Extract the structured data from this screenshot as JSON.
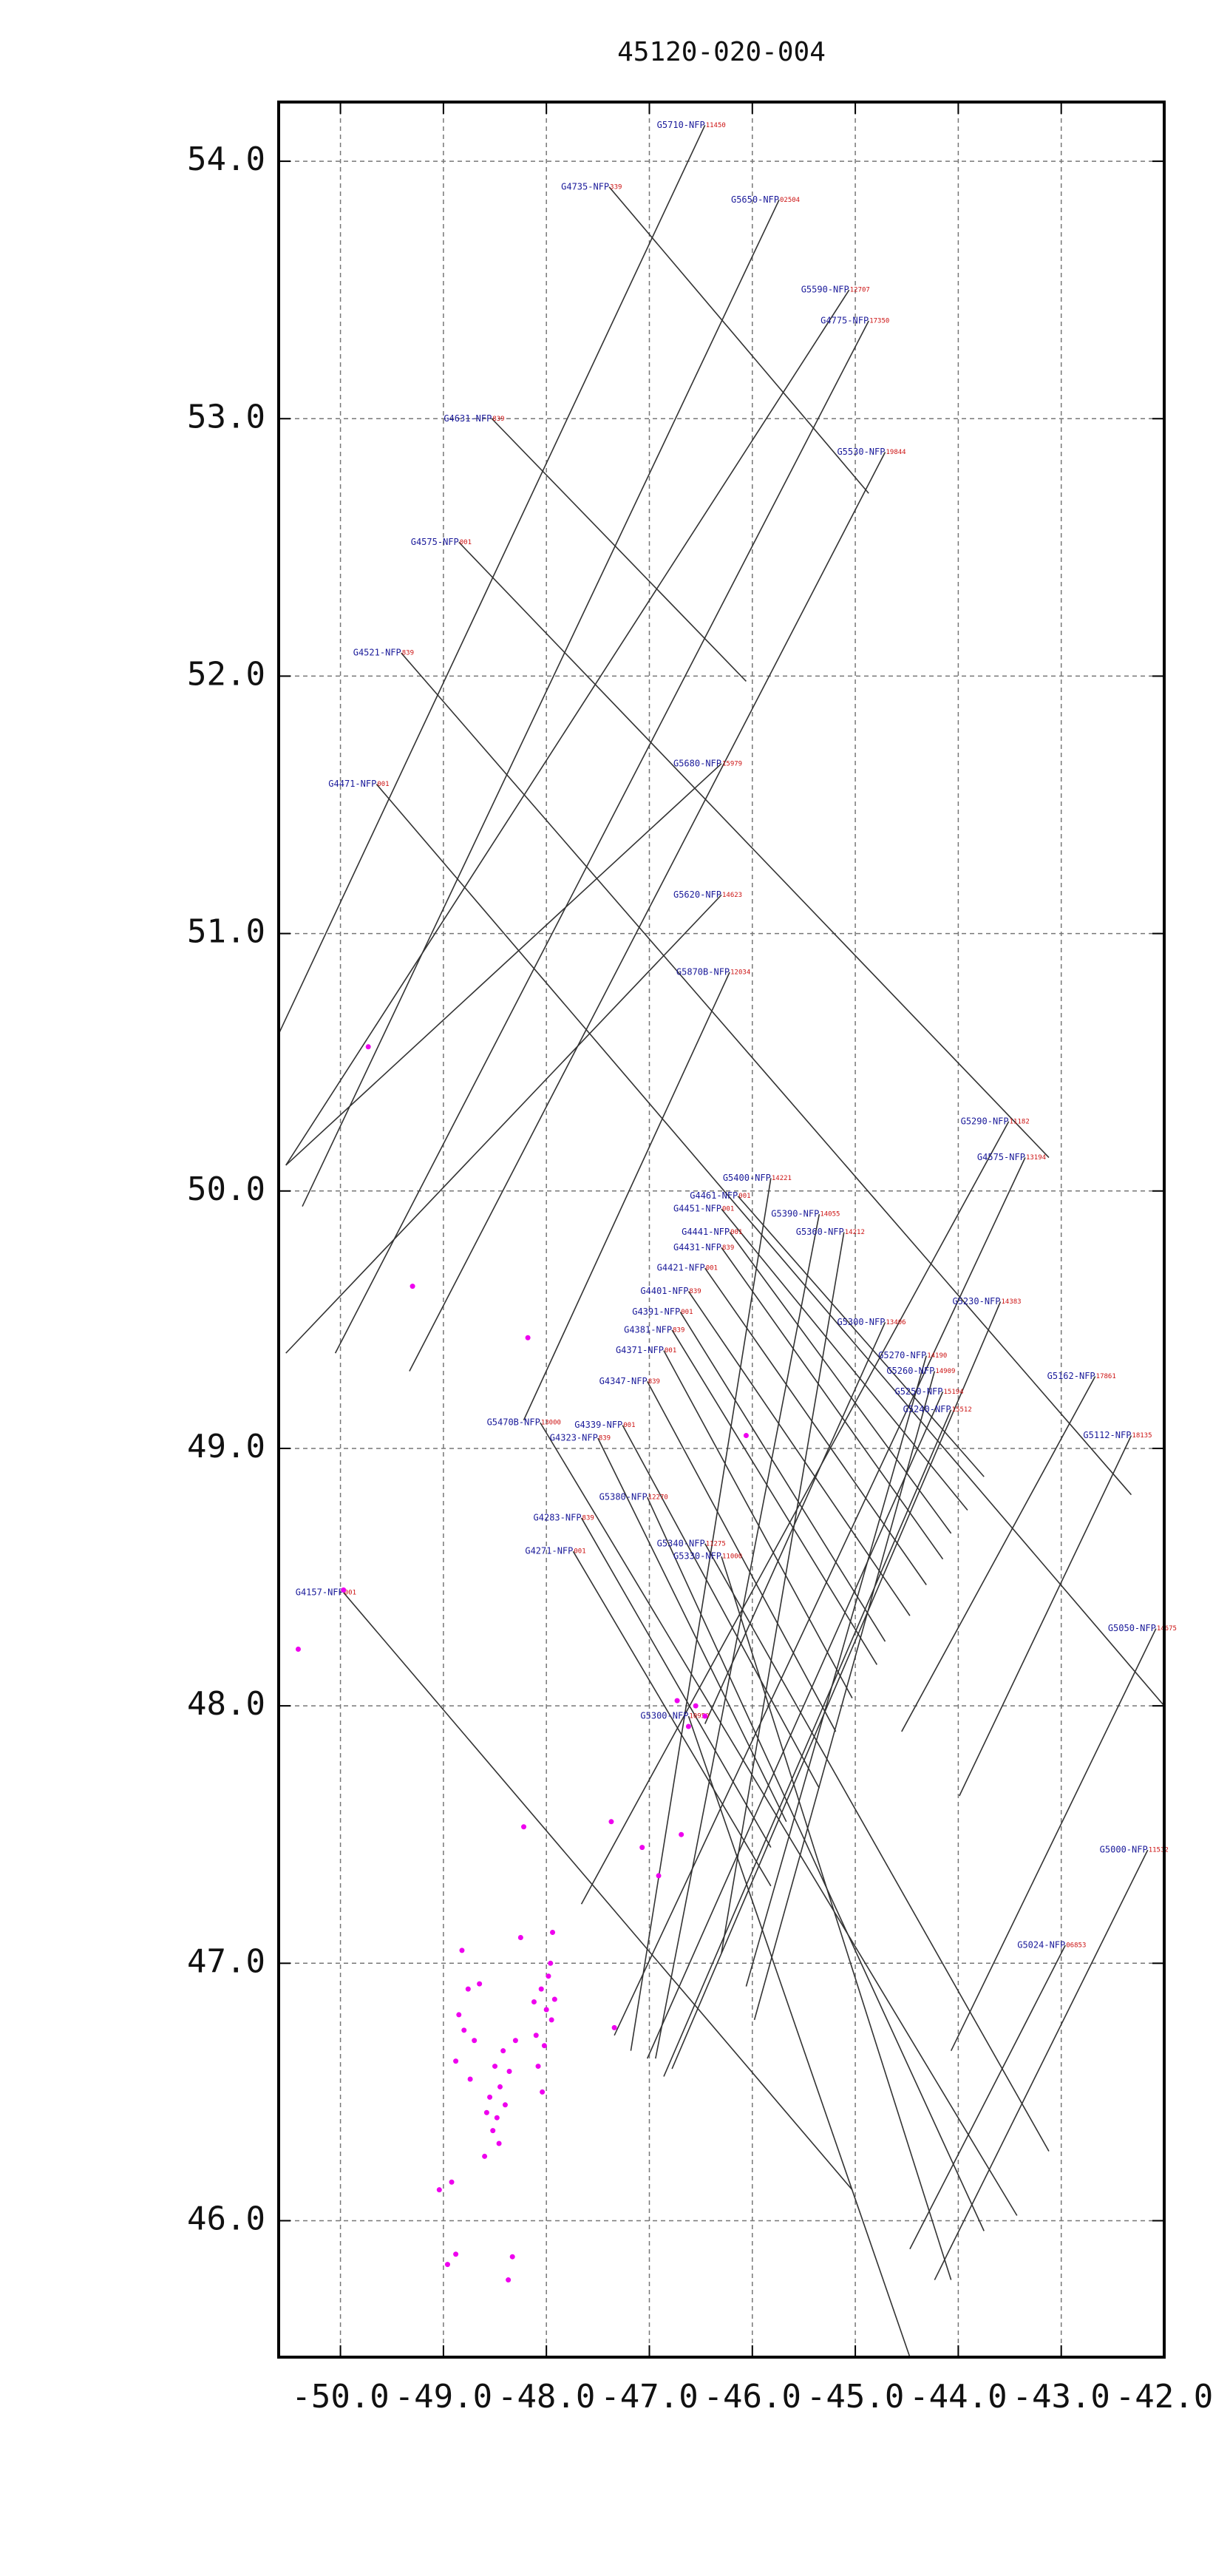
{
  "chart_data": {
    "type": "tracks",
    "title": "45120-020-004",
    "xlim": [
      -50.6,
      -42.0
    ],
    "ylim": [
      45.47,
      54.23
    ],
    "xticks": [
      {
        "value": -50,
        "label": "-50.0"
      },
      {
        "value": -49,
        "label": "-49.0"
      },
      {
        "value": -48,
        "label": "-48.0"
      },
      {
        "value": -47,
        "label": "-47.0"
      },
      {
        "value": -46,
        "label": "-46.0"
      },
      {
        "value": -45,
        "label": "-45.0"
      },
      {
        "value": -44,
        "label": "-44.0"
      },
      {
        "value": -43,
        "label": "-43.0"
      },
      {
        "value": -42,
        "label": "-42.0"
      }
    ],
    "yticks": [
      {
        "value": 46,
        "label": "46.0"
      },
      {
        "value": 47,
        "label": "47.0"
      },
      {
        "value": 48,
        "label": "48.0"
      },
      {
        "value": 49,
        "label": "49.0"
      },
      {
        "value": 50,
        "label": "50.0"
      },
      {
        "value": 51,
        "label": "51.0"
      },
      {
        "value": 52,
        "label": "52.0"
      },
      {
        "value": 53,
        "label": "53.0"
      },
      {
        "value": 54,
        "label": "54.0"
      }
    ],
    "grid": true,
    "line_color": "#333333",
    "name_color": "#1a1a9a",
    "id_color": "#cc1111",
    "point_color": "#ee00ee",
    "tracks": [
      {
        "name": "G5710-NFP",
        "id": "11450",
        "lon": [
          -46.46,
          -50.6
        ],
        "lat": [
          54.14,
          50.61
        ]
      },
      {
        "name": "G4735-NFP",
        "id": "339",
        "lon": [
          -47.39,
          -44.87
        ],
        "lat": [
          53.9,
          52.71
        ]
      },
      {
        "name": "G5650-NFP",
        "id": "02504",
        "lon": [
          -45.74,
          -50.37
        ],
        "lat": [
          53.85,
          49.94
        ]
      },
      {
        "name": "G5590-NFP",
        "id": "12707",
        "lon": [
          -45.06,
          -50.53
        ],
        "lat": [
          53.5,
          50.1
        ]
      },
      {
        "name": "G4775-NFP",
        "id": "17350",
        "lon": [
          -44.87,
          -50.05
        ],
        "lat": [
          53.38,
          49.37
        ]
      },
      {
        "name": "G5530-NFP",
        "id": "19844",
        "lon": [
          -44.71,
          -49.33
        ],
        "lat": [
          52.87,
          49.3
        ]
      },
      {
        "name": "G4631-NFP",
        "id": "839",
        "lon": [
          -48.53,
          -46.06
        ],
        "lat": [
          53.0,
          51.98
        ]
      },
      {
        "name": "G4575-NFP",
        "id": "001",
        "lon": [
          -48.85,
          -43.12
        ],
        "lat": [
          52.52,
          50.13
        ]
      },
      {
        "name": "G4521-NFP",
        "id": "839",
        "lon": [
          -49.41,
          -42.32
        ],
        "lat": [
          52.09,
          48.82
        ]
      },
      {
        "name": "G4471-NFP",
        "id": "001",
        "lon": [
          -49.65,
          -42.0
        ],
        "lat": [
          51.58,
          48.0
        ]
      },
      {
        "name": "G5680-NFP",
        "id": "15979",
        "lon": [
          -46.3,
          -50.53
        ],
        "lat": [
          51.66,
          50.1
        ]
      },
      {
        "name": "G5620-NFP",
        "id": "14623",
        "lon": [
          -46.3,
          -50.53
        ],
        "lat": [
          51.15,
          49.37
        ]
      },
      {
        "name": "G5870B-NFP",
        "id": "12034",
        "lon": [
          -46.22,
          -48.22
        ],
        "lat": [
          50.85,
          49.11
        ]
      },
      {
        "name": "G4157-NFP",
        "id": "001",
        "lon": [
          -49.97,
          -45.03
        ],
        "lat": [
          48.44,
          46.12
        ]
      },
      {
        "name": "G4461-NFP",
        "id": "001",
        "lon": [
          -46.14,
          -43.75
        ],
        "lat": [
          49.98,
          48.89
        ]
      },
      {
        "name": "G4451-NFP",
        "id": "001",
        "lon": [
          -46.3,
          -43.91
        ],
        "lat": [
          49.93,
          48.76
        ]
      },
      {
        "name": "G4441-NFP",
        "id": "001",
        "lon": [
          -46.22,
          -44.07
        ],
        "lat": [
          49.84,
          48.67
        ]
      },
      {
        "name": "G4431-NFP",
        "id": "839",
        "lon": [
          -46.3,
          -44.15
        ],
        "lat": [
          49.78,
          48.57
        ]
      },
      {
        "name": "G4421-NFP",
        "id": "001",
        "lon": [
          -46.46,
          -44.31
        ],
        "lat": [
          49.7,
          48.47
        ]
      },
      {
        "name": "G4401-NFP",
        "id": "839",
        "lon": [
          -46.62,
          -44.47
        ],
        "lat": [
          49.61,
          48.35
        ]
      },
      {
        "name": "G4391-NFP",
        "id": "001",
        "lon": [
          -46.7,
          -44.71
        ],
        "lat": [
          49.53,
          48.25
        ]
      },
      {
        "name": "G4381-NFP",
        "id": "839",
        "lon": [
          -46.78,
          -44.79
        ],
        "lat": [
          49.46,
          48.16
        ]
      },
      {
        "name": "G4371-NFP",
        "id": "001",
        "lon": [
          -46.86,
          -45.03
        ],
        "lat": [
          49.38,
          48.03
        ]
      },
      {
        "name": "G4347-NFP",
        "id": "839",
        "lon": [
          -47.02,
          -45.19
        ],
        "lat": [
          49.26,
          47.9
        ]
      },
      {
        "name": "G4339-NFP",
        "id": "001",
        "lon": [
          -47.26,
          -45.35
        ],
        "lat": [
          49.09,
          47.68
        ]
      },
      {
        "name": "G4323-NFP",
        "id": "839",
        "lon": [
          -47.5,
          -45.67
        ],
        "lat": [
          49.04,
          47.55
        ]
      },
      {
        "name": "G4283-NFP",
        "id": "839",
        "lon": [
          -47.66,
          -45.82
        ],
        "lat": [
          48.73,
          47.45
        ]
      },
      {
        "name": "G4271-NFP",
        "id": "001",
        "lon": [
          -47.74,
          -45.82
        ],
        "lat": [
          48.6,
          47.3
        ]
      },
      {
        "name": "G5470B-NFP",
        "id": "13000",
        "lon": [
          -48.06,
          -43.43
        ],
        "lat": [
          49.1,
          46.02
        ]
      },
      {
        "name": "G5380-NFP",
        "id": "12270",
        "lon": [
          -47.02,
          -43.75
        ],
        "lat": [
          48.81,
          45.96
        ]
      },
      {
        "name": "G5340-NFP",
        "id": "11275",
        "lon": [
          -46.46,
          -43.12
        ],
        "lat": [
          48.63,
          46.27
        ]
      },
      {
        "name": "G5330-NFP",
        "id": "11000",
        "lon": [
          -46.3,
          -44.07
        ],
        "lat": [
          48.58,
          45.77
        ]
      },
      {
        "name": "G5300-NFP",
        "id": "10950",
        "lon": [
          -46.62,
          -44.47
        ],
        "lat": [
          47.96,
          45.47
        ]
      },
      {
        "name": "G5290-NFP",
        "id": "11182",
        "lon": [
          -43.51,
          -47.66
        ],
        "lat": [
          50.27,
          47.23
        ]
      },
      {
        "name": "G4575-NFP",
        "id": "13194",
        "lon": [
          -43.35,
          -47.34
        ],
        "lat": [
          50.13,
          46.72
        ]
      },
      {
        "name": "G5230-NFP",
        "id": "14383",
        "lon": [
          -43.59,
          -46.78
        ],
        "lat": [
          49.57,
          46.59
        ]
      },
      {
        "name": "G5162-NFP",
        "id": "17861",
        "lon": [
          -42.67,
          -44.55
        ],
        "lat": [
          49.28,
          47.9
        ]
      },
      {
        "name": "G5112-NFP",
        "id": "18135",
        "lon": [
          -42.32,
          -43.99
        ],
        "lat": [
          49.05,
          47.65
        ]
      },
      {
        "name": "G5050-NFP",
        "id": "14675",
        "lon": [
          -42.08,
          -44.07
        ],
        "lat": [
          48.3,
          46.66
        ]
      },
      {
        "name": "G5000-NFP",
        "id": "11532",
        "lon": [
          -42.16,
          -44.23
        ],
        "lat": [
          47.44,
          45.77
        ]
      },
      {
        "name": "G5024-NFP",
        "id": "06853",
        "lon": [
          -42.96,
          -44.47
        ],
        "lat": [
          47.07,
          45.89
        ]
      },
      {
        "name": "G5400-NFP",
        "id": "14221",
        "lon": [
          -45.82,
          -47.18
        ],
        "lat": [
          50.05,
          46.66
        ]
      },
      {
        "name": "G5390-NFP",
        "id": "14055",
        "lon": [
          -45.35,
          -46.94
        ],
        "lat": [
          49.91,
          46.63
        ]
      },
      {
        "name": "G5360-NFP",
        "id": "14212",
        "lon": [
          -45.11,
          -46.3
        ],
        "lat": [
          49.84,
          47.04
        ]
      },
      {
        "name": "G5300-NFP",
        "id": "13406",
        "lon": [
          -44.71,
          -46.46
        ],
        "lat": [
          49.49,
          47.93
        ]
      },
      {
        "name": "G5270-NFP",
        "id": "14190",
        "lon": [
          -44.31,
          -46.06
        ],
        "lat": [
          49.36,
          46.91
        ]
      },
      {
        "name": "G5260-NFP",
        "id": "14909",
        "lon": [
          -44.23,
          -45.98
        ],
        "lat": [
          49.3,
          46.78
        ]
      },
      {
        "name": "G5250-NFP",
        "id": "15194",
        "lon": [
          -44.15,
          -47.02
        ],
        "lat": [
          49.22,
          46.63
        ]
      },
      {
        "name": "G5240-NFP",
        "id": "15512",
        "lon": [
          -44.07,
          -46.86
        ],
        "lat": [
          49.15,
          46.56
        ]
      }
    ],
    "points": {
      "lon": [
        -49.73,
        -49.3,
        -48.18,
        -49.97,
        -50.41,
        -46.06,
        -46.73,
        -46.46,
        -46.55,
        -46.62,
        -48.22,
        -47.37,
        -47.07,
        -46.69,
        -46.91,
        -47.94,
        -47.34,
        -48.92,
        -49.04,
        -48.88,
        -48.96,
        -48.33,
        -48.37,
        -48.82,
        -48.76,
        -48.85,
        -48.8,
        -48.7,
        -48.88,
        -48.74,
        -48.5,
        -48.45,
        -48.55,
        -48.4,
        -48.48,
        -48.52,
        -48.42,
        -48.36,
        -48.58,
        -48.46,
        -48.3,
        -48.05,
        -48.0,
        -47.95,
        -48.1,
        -48.02,
        -47.98,
        -48.08,
        -47.92,
        -48.04,
        -48.12,
        -47.96,
        -48.6,
        -48.25,
        -48.65
      ],
      "lat": [
        50.56,
        49.63,
        49.43,
        48.45,
        48.22,
        49.05,
        48.02,
        47.96,
        48.0,
        47.92,
        47.53,
        47.55,
        47.45,
        47.5,
        47.34,
        47.12,
        46.75,
        46.15,
        46.12,
        45.87,
        45.83,
        45.86,
        45.77,
        47.05,
        46.9,
        46.8,
        46.74,
        46.7,
        46.62,
        46.55,
        46.6,
        46.52,
        46.48,
        46.45,
        46.4,
        46.35,
        46.66,
        46.58,
        46.42,
        46.3,
        46.7,
        46.9,
        46.82,
        46.78,
        46.72,
        46.68,
        46.95,
        46.6,
        46.86,
        46.5,
        46.85,
        47.0,
        46.25,
        47.1,
        46.92
      ]
    }
  }
}
